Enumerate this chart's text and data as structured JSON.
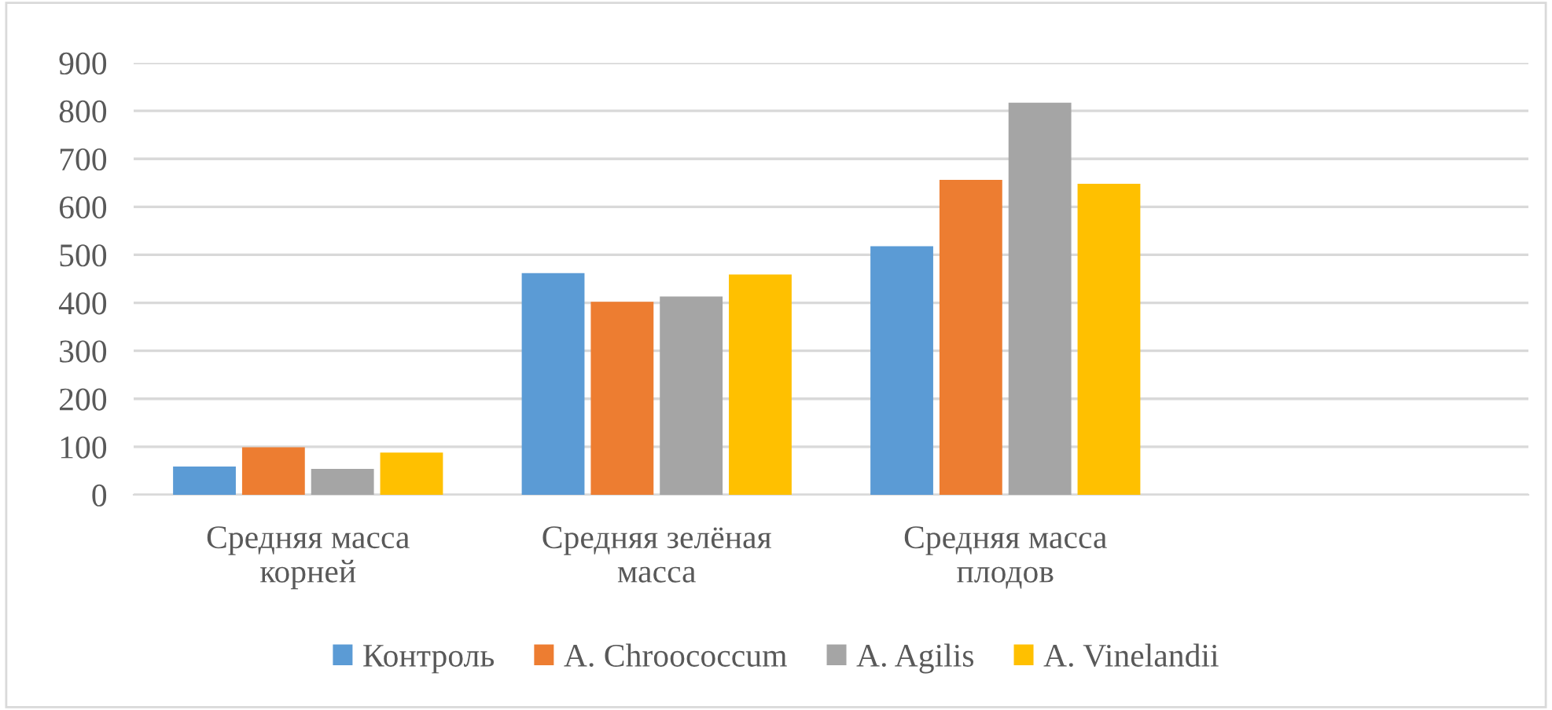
{
  "chart_data": {
    "type": "bar",
    "categories": [
      "Средняя масса\nкорней",
      "Средняя зелёная\nмасса",
      "Средняя масса\nплодов",
      null
    ],
    "series": [
      {
        "name": "Контроль",
        "color": "#5b9bd5",
        "values": [
          59,
          462,
          518,
          null
        ]
      },
      {
        "name": "A. Chroococcum",
        "color": "#ed7d31",
        "values": [
          99,
          402,
          656,
          null
        ]
      },
      {
        "name": "A. Agilis",
        "color": "#a5a5a5",
        "values": [
          54,
          413,
          817,
          null
        ]
      },
      {
        "name": "A. Vinelandii",
        "color": "#ffc000",
        "values": [
          88,
          459,
          648,
          null
        ]
      }
    ],
    "ylim": [
      0,
      900
    ],
    "yticks": [
      0,
      100,
      200,
      300,
      400,
      500,
      600,
      700,
      800,
      900
    ],
    "grid": "y",
    "legend": "bottom"
  }
}
